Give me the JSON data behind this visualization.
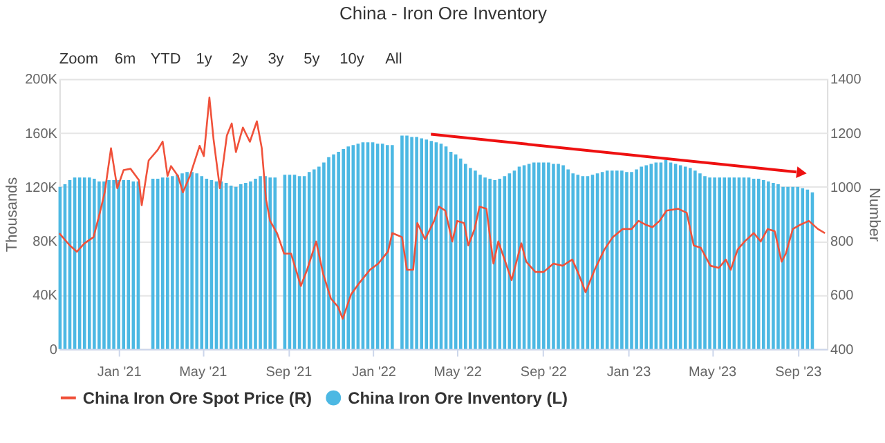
{
  "chart_data": {
    "type": "bar",
    "title": "China - Iron Ore Inventory",
    "annotations": [
      "Zoom",
      "6m",
      "YTD",
      "1y",
      "2y",
      "3y",
      "5y",
      "10y",
      "All"
    ],
    "ylabel": "Thousands",
    "y2label": "Number",
    "xlim": [
      "2020-10-08",
      "2023-10-13"
    ],
    "xticks": [
      {
        "value": "2021-01-01",
        "label": "Jan '21"
      },
      {
        "value": "2021-05-01",
        "label": "May '21"
      },
      {
        "value": "2021-09-01",
        "label": "Sep '21"
      },
      {
        "value": "2022-01-01",
        "label": "Jan '22"
      },
      {
        "value": "2022-05-01",
        "label": "May '22"
      },
      {
        "value": "2022-09-01",
        "label": "Sep '22"
      },
      {
        "value": "2023-01-01",
        "label": "Jan '23"
      },
      {
        "value": "2023-05-01",
        "label": "May '23"
      },
      {
        "value": "2023-09-01",
        "label": "Sep '23"
      }
    ],
    "ylim": [
      0,
      200000
    ],
    "yticks": [
      0,
      {
        "value": 40000,
        "label": "40K"
      },
      {
        "value": 80000,
        "label": "80K"
      },
      {
        "value": 120000,
        "label": "120K"
      },
      {
        "value": 160000,
        "label": "160K"
      },
      {
        "value": 200000,
        "label": "200K"
      }
    ],
    "y2lim": [
      400,
      1400
    ],
    "y2ticks": [
      400,
      600,
      800,
      1000,
      1200,
      1400
    ],
    "grid": "y",
    "legend": "bottom",
    "x": [
      "2020-10-09",
      "2020-10-16",
      "2020-10-23",
      "2020-10-30",
      "2020-11-06",
      "2020-11-13",
      "2020-11-20",
      "2020-11-27",
      "2020-12-04",
      "2020-12-11",
      "2020-12-18",
      "2020-12-25",
      "2021-01-01",
      "2021-01-08",
      "2021-01-15",
      "2021-01-22",
      "2021-01-29",
      "2021-02-05",
      "2021-02-12",
      "2021-02-19",
      "2021-02-26",
      "2021-03-05",
      "2021-03-12",
      "2021-03-19",
      "2021-03-26",
      "2021-04-02",
      "2021-04-09",
      "2021-04-16",
      "2021-04-23",
      "2021-04-30",
      "2021-05-07",
      "2021-05-14",
      "2021-05-21",
      "2021-05-28",
      "2021-06-04",
      "2021-06-11",
      "2021-06-18",
      "2021-06-25",
      "2021-07-02",
      "2021-07-09",
      "2021-07-16",
      "2021-07-23",
      "2021-07-30",
      "2021-08-06",
      "2021-08-13",
      "2021-08-20",
      "2021-08-27",
      "2021-09-03",
      "2021-09-10",
      "2021-09-17",
      "2021-09-24",
      "2021-10-01",
      "2021-10-08",
      "2021-10-15",
      "2021-10-22",
      "2021-10-29",
      "2021-11-05",
      "2021-11-12",
      "2021-11-19",
      "2021-11-26",
      "2021-12-03",
      "2021-12-10",
      "2021-12-17",
      "2021-12-24",
      "2021-12-31",
      "2022-01-07",
      "2022-01-14",
      "2022-01-21",
      "2022-01-28",
      "2022-02-04",
      "2022-02-11",
      "2022-02-18",
      "2022-02-25",
      "2022-03-04",
      "2022-03-11",
      "2022-03-18",
      "2022-03-25",
      "2022-04-01",
      "2022-04-08",
      "2022-04-15",
      "2022-04-22",
      "2022-04-29",
      "2022-05-06",
      "2022-05-13",
      "2022-05-20",
      "2022-05-27",
      "2022-06-03",
      "2022-06-10",
      "2022-06-17",
      "2022-06-24",
      "2022-07-01",
      "2022-07-08",
      "2022-07-15",
      "2022-07-22",
      "2022-07-29",
      "2022-08-05",
      "2022-08-12",
      "2022-08-19",
      "2022-08-26",
      "2022-09-02",
      "2022-09-09",
      "2022-09-16",
      "2022-09-23",
      "2022-09-30",
      "2022-10-07",
      "2022-10-14",
      "2022-10-21",
      "2022-10-28",
      "2022-11-04",
      "2022-11-11",
      "2022-11-18",
      "2022-11-25",
      "2022-12-02",
      "2022-12-09",
      "2022-12-16",
      "2022-12-23",
      "2022-12-30",
      "2023-01-06",
      "2023-01-13",
      "2023-01-20",
      "2023-01-27",
      "2023-02-03",
      "2023-02-10",
      "2023-02-17",
      "2023-02-24",
      "2023-03-03",
      "2023-03-10",
      "2023-03-17",
      "2023-03-24",
      "2023-03-31",
      "2023-04-07",
      "2023-04-14",
      "2023-04-21",
      "2023-04-28",
      "2023-05-05",
      "2023-05-12",
      "2023-05-19",
      "2023-05-26",
      "2023-06-02",
      "2023-06-09",
      "2023-06-16",
      "2023-06-23",
      "2023-06-30",
      "2023-07-07",
      "2023-07-14",
      "2023-07-21",
      "2023-07-28",
      "2023-08-04",
      "2023-08-11",
      "2023-08-18",
      "2023-08-25",
      "2023-09-01",
      "2023-09-08",
      "2023-09-15",
      "2023-09-22"
    ],
    "series": [
      {
        "name": "China Iron Ore Inventory (L)",
        "color": "#4cb8e3",
        "values": [
          120000,
          122000,
          125000,
          127000,
          127000,
          127000,
          127000,
          126000,
          124000,
          124000,
          125000,
          125000,
          125000,
          125000,
          125000,
          124000,
          124000,
          null,
          null,
          126000,
          126000,
          127000,
          127000,
          128000,
          129000,
          130000,
          131000,
          131000,
          130000,
          128000,
          126000,
          125000,
          124000,
          124000,
          123000,
          121000,
          120000,
          122000,
          123000,
          124000,
          126000,
          128000,
          128000,
          127000,
          127000,
          null,
          129000,
          129000,
          129000,
          128000,
          128000,
          131000,
          133000,
          135000,
          138000,
          142000,
          144000,
          146000,
          148000,
          150000,
          151000,
          152000,
          153000,
          153000,
          153000,
          152000,
          152000,
          151000,
          151000,
          null,
          158000,
          158000,
          157000,
          157000,
          156000,
          155000,
          154000,
          153000,
          152000,
          150000,
          146000,
          144000,
          141000,
          137000,
          134000,
          132000,
          129000,
          127000,
          126000,
          125000,
          126000,
          128000,
          130000,
          132000,
          135000,
          136000,
          137000,
          138000,
          138000,
          138000,
          138000,
          137000,
          137000,
          136000,
          133000,
          130000,
          129000,
          128000,
          128000,
          129000,
          130000,
          131000,
          132000,
          132000,
          132000,
          132000,
          131000,
          131000,
          133000,
          135000,
          136000,
          137000,
          138000,
          138000,
          140000,
          138000,
          137000,
          136000,
          135000,
          134000,
          132000,
          130000,
          128000,
          127000,
          127000,
          127000,
          127000,
          127000,
          127000,
          127000,
          127000,
          127000,
          126000,
          126000,
          125000,
          124000,
          123000,
          122000,
          120000,
          120000,
          120000,
          120000,
          119000,
          118000,
          116000
        ]
      },
      {
        "name": "China Iron Ore Spot Price (R)",
        "type": "line",
        "axis": "y2",
        "color": "#f0513a",
        "x": [
          "2020-10-08",
          "2020-10-23",
          "2020-11-02",
          "2020-11-13",
          "2020-11-26",
          "2020-12-05",
          "2020-12-12",
          "2020-12-21",
          "2020-12-30",
          "2021-01-08",
          "2021-01-18",
          "2021-01-30",
          "2021-02-03",
          "2021-02-13",
          "2021-02-26",
          "2021-03-05",
          "2021-03-12",
          "2021-03-17",
          "2021-03-27",
          "2021-04-03",
          "2021-04-13",
          "2021-04-27",
          "2021-05-03",
          "2021-05-11",
          "2021-05-17",
          "2021-05-26",
          "2021-06-05",
          "2021-06-12",
          "2021-06-18",
          "2021-06-28",
          "2021-07-08",
          "2021-07-18",
          "2021-07-25",
          "2021-07-31",
          "2021-08-06",
          "2021-08-16",
          "2021-08-26",
          "2021-09-05",
          "2021-09-19",
          "2021-09-28",
          "2021-10-11",
          "2021-10-21",
          "2021-11-01",
          "2021-11-11",
          "2021-11-18",
          "2021-11-30",
          "2021-12-13",
          "2021-12-27",
          "2022-01-08",
          "2022-01-22",
          "2022-01-28",
          "2022-02-11",
          "2022-02-18",
          "2022-02-27",
          "2022-03-05",
          "2022-03-16",
          "2022-03-29",
          "2022-04-05",
          "2022-04-14",
          "2022-04-24",
          "2022-05-01",
          "2022-05-11",
          "2022-05-17",
          "2022-05-26",
          "2022-06-02",
          "2022-06-12",
          "2022-06-22",
          "2022-06-29",
          "2022-07-09",
          "2022-07-18",
          "2022-08-01",
          "2022-08-08",
          "2022-08-21",
          "2022-09-02",
          "2022-09-16",
          "2022-09-29",
          "2022-10-13",
          "2022-10-22",
          "2022-11-01",
          "2022-11-14",
          "2022-11-28",
          "2022-12-10",
          "2022-12-24",
          "2023-01-06",
          "2023-01-16",
          "2023-01-27",
          "2023-02-05",
          "2023-02-15",
          "2023-02-25",
          "2023-03-14",
          "2023-03-26",
          "2023-04-05",
          "2023-04-15",
          "2023-04-29",
          "2023-05-11",
          "2023-05-21",
          "2023-05-28",
          "2023-06-07",
          "2023-06-17",
          "2023-06-30",
          "2023-07-10",
          "2023-07-20",
          "2023-07-30",
          "2023-08-09",
          "2023-08-15",
          "2023-08-25",
          "2023-09-04",
          "2023-09-17",
          "2023-09-30",
          "2023-10-10"
        ],
        "values": [
          828,
          783,
          760,
          791,
          814,
          904,
          980,
          1143,
          995,
          1062,
          1067,
          1025,
          932,
          1098,
          1137,
          1168,
          1040,
          1077,
          1040,
          980,
          1040,
          1152,
          1114,
          1331,
          1175,
          995,
          1190,
          1235,
          1129,
          1220,
          1167,
          1243,
          1144,
          956,
          874,
          828,
          753,
          753,
          633,
          693,
          798,
          678,
          587,
          557,
          512,
          602,
          648,
          693,
          716,
          761,
          829,
          814,
          693,
          693,
          866,
          806,
          874,
          927,
          912,
          798,
          874,
          866,
          783,
          844,
          927,
          919,
          716,
          798,
          723,
          655,
          791,
          723,
          685,
          685,
          716,
          708,
          731,
          678,
          610,
          693,
          768,
          814,
          844,
          844,
          874,
          859,
          851,
          874,
          912,
          919,
          904,
          783,
          775,
          708,
          700,
          731,
          693,
          768,
          798,
          829,
          798,
          844,
          836,
          723,
          753,
          844,
          859,
          874,
          844,
          829
        ]
      }
    ]
  }
}
